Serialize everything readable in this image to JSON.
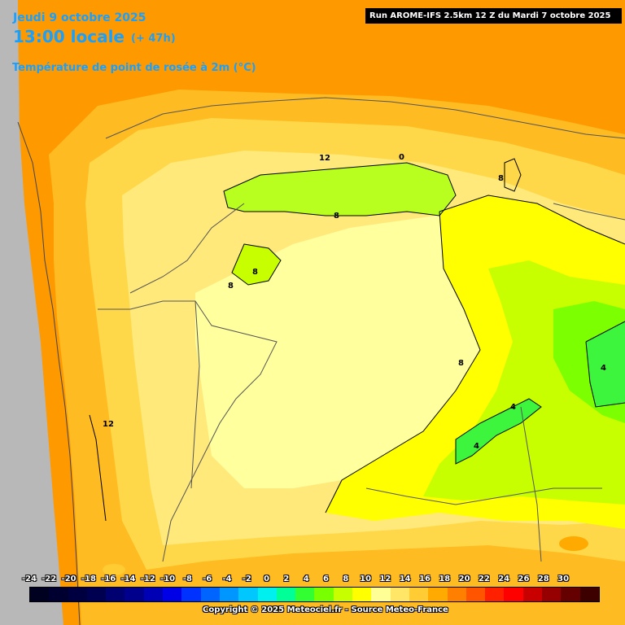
{
  "header": {
    "date": "Jeudi 9 octobre 2025",
    "hour": "13:00 locale",
    "lead": "(+ 47h)",
    "parameter": "Température de point de rosée à 2m (°C)",
    "run": "Run AROME-IFS 2.5km 12 Z du Mardi 7 octobre 2025"
  },
  "legend": {
    "ticks": [
      "-24",
      "-22",
      "-20",
      "-18",
      "-16",
      "-14",
      "-12",
      "-10",
      "-8",
      "-6",
      "-4",
      "-2",
      "0",
      "2",
      "4",
      "6",
      "8",
      "10",
      "12",
      "14",
      "16",
      "18",
      "20",
      "22",
      "24",
      "26",
      "28",
      "30"
    ],
    "colors": [
      "#000020",
      "#000030",
      "#000040",
      "#000050",
      "#000070",
      "#00008c",
      "#0000b4",
      "#0000e6",
      "#0032ff",
      "#0064ff",
      "#0096ff",
      "#00c8ff",
      "#00f0f0",
      "#00ff96",
      "#32ff32",
      "#78ff00",
      "#c8ff00",
      "#ffff00",
      "#ffff96",
      "#ffe666",
      "#ffcc33",
      "#ffaa00",
      "#ff8000",
      "#ff5500",
      "#ff2000",
      "#ff0000",
      "#c80000",
      "#960000",
      "#640000",
      "#3c0000"
    ]
  },
  "map": {
    "colors": {
      "sea_band": "#ff9900",
      "orange": "#ffaa00",
      "light_orange": "#ffcc33",
      "pale": "#ffe666",
      "pale_yellow": "#ffff96",
      "yellow": "#ffff00",
      "yellow_green": "#c8ff00",
      "green": "#78ff00",
      "bright_green": "#32ff32",
      "gray_land": "#b4b4b4"
    },
    "contour_labels": [
      "12",
      "8",
      "8",
      "8",
      "8",
      "8",
      "4",
      "4",
      "4",
      "12",
      "0"
    ]
  },
  "footer": {
    "copyright": "Copyright © 2025 Meteociel.fr - Source Meteo-France"
  }
}
